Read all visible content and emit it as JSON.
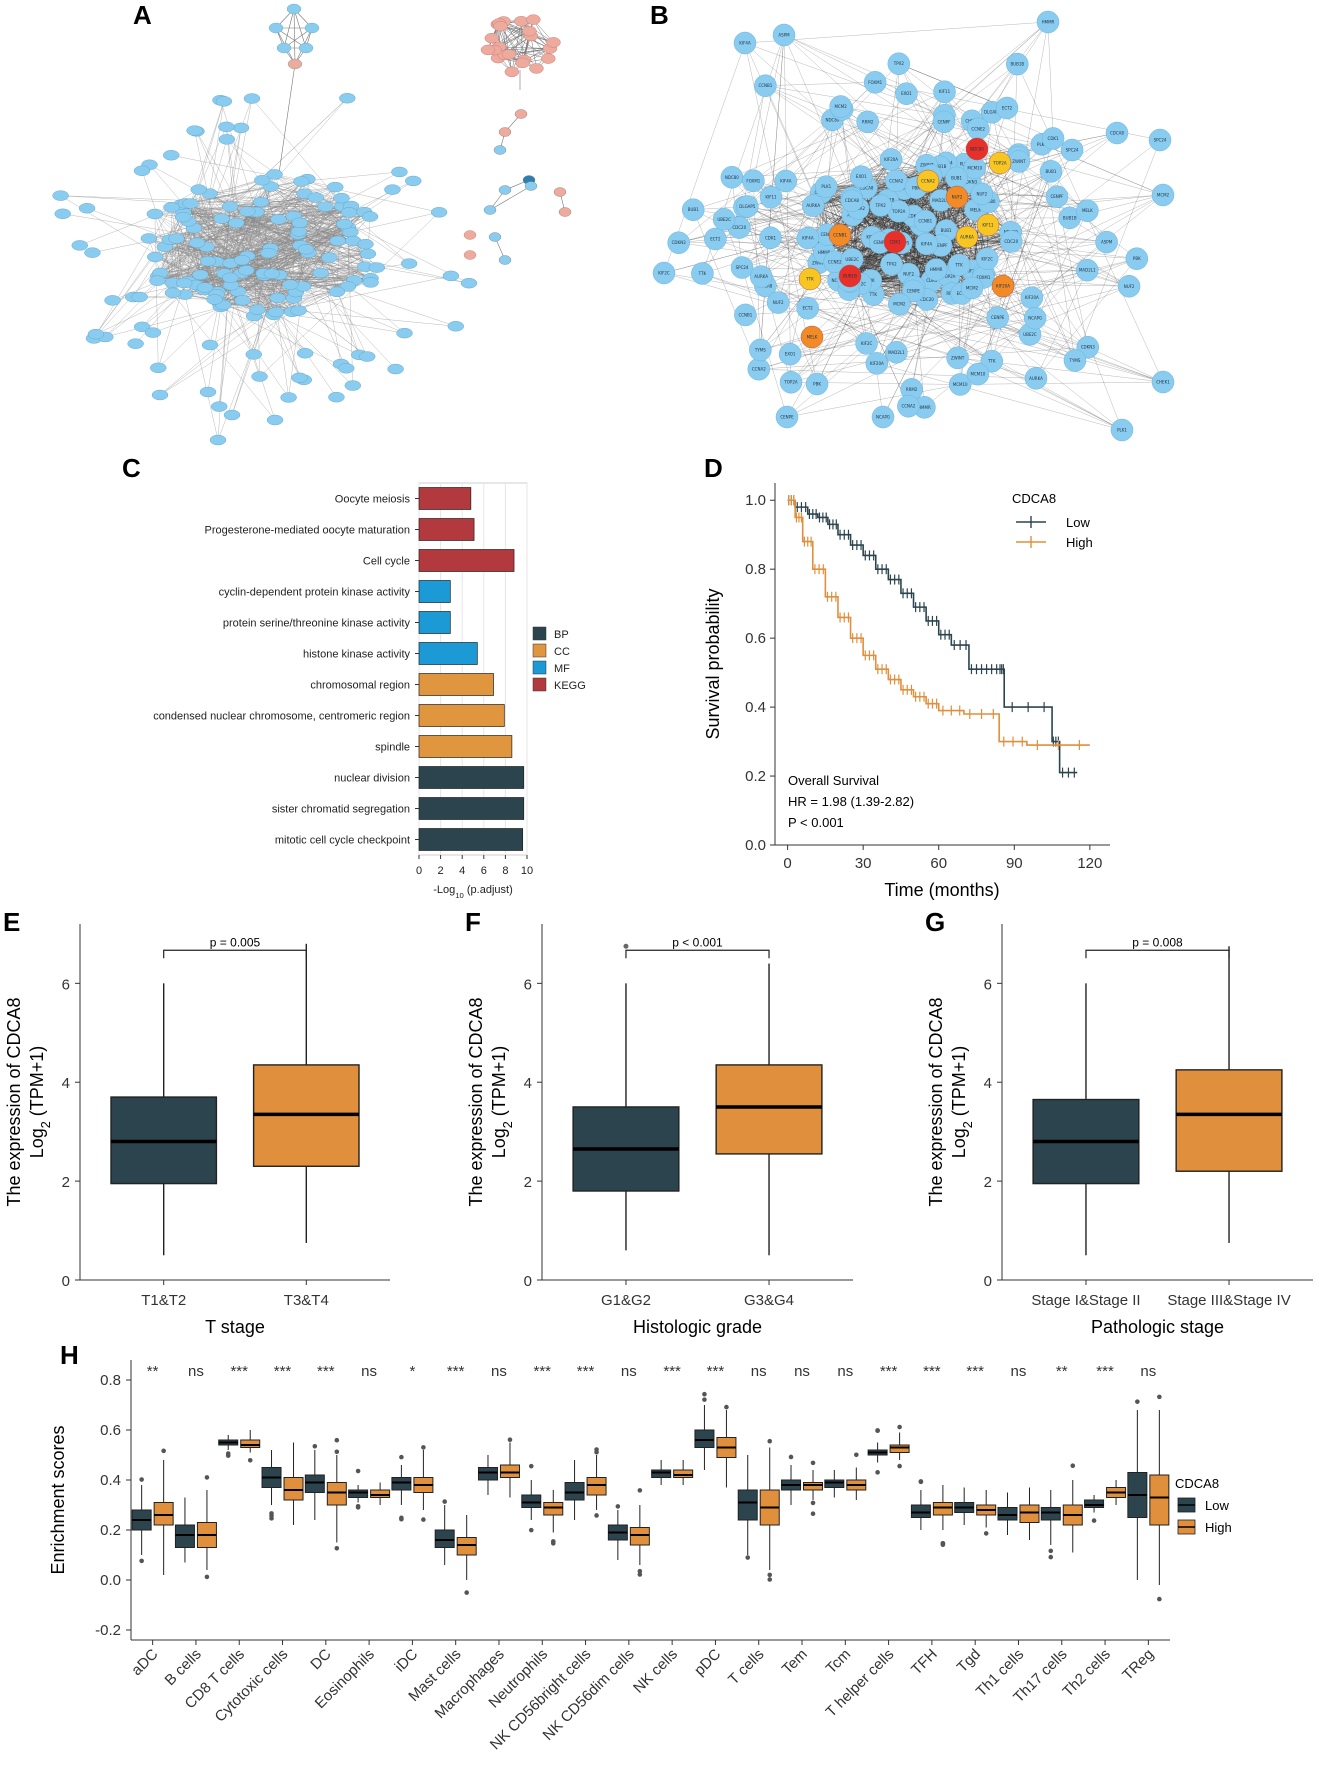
{
  "panels": {
    "A": "A",
    "B": "B",
    "C": "C",
    "D": "D",
    "E": "E",
    "F": "F",
    "G": "G",
    "H": "H"
  },
  "colors": {
    "low": "#2c444e",
    "high": "#e08f3c",
    "bp": "#2c444e",
    "cc": "#e0953f",
    "mf": "#1b9ad6",
    "kegg": "#b23a3f",
    "node_blue": "#89ccf0",
    "node_pink": "#eeaa9c",
    "hub_red": "#e8302a",
    "hub_orange": "#f28a26",
    "hub_yellow": "#f7c623"
  },
  "chart_data": [
    {
      "id": "C",
      "type": "bar",
      "orientation": "horizontal",
      "categories": [
        "Oocyte meiosis",
        "Progesterone-mediated oocyte maturation",
        "Cell cycle",
        "cyclin-dependent protein kinase activity",
        "protein serine/threonine kinase activity",
        "histone kinase activity",
        "chromosomal region",
        "condensed nuclear chromosome, centromeric region",
        "spindle",
        "nuclear division",
        "sister chromatid segregation",
        "mitotic cell cycle checkpoint"
      ],
      "values": [
        4.8,
        5.1,
        8.8,
        2.9,
        2.9,
        5.4,
        6.9,
        7.9,
        8.6,
        9.7,
        9.7,
        9.6
      ],
      "groups": [
        "KEGG",
        "KEGG",
        "KEGG",
        "MF",
        "MF",
        "MF",
        "CC",
        "CC",
        "CC",
        "BP",
        "BP",
        "BP"
      ],
      "xlabel_main": "-Log",
      "xlabel_sub": "10",
      "xlabel_rest": " (p.adjust)",
      "xticks": [
        0,
        2,
        4,
        6,
        8,
        10
      ],
      "xlim": [
        0,
        10
      ],
      "legend": [
        "BP",
        "CC",
        "MF",
        "KEGG"
      ]
    },
    {
      "id": "D",
      "type": "line",
      "subtype": "kaplan-meier",
      "legend_title": "CDCA8",
      "xlabel": "Time (months)",
      "ylabel": "Survival probability",
      "xticks": [
        0,
        30,
        60,
        90,
        120
      ],
      "yticks": [
        "0.0",
        "0.2",
        "0.4",
        "0.6",
        "0.8",
        "1.0"
      ],
      "xlim": [
        -5,
        128
      ],
      "ylim": [
        0,
        1.05
      ],
      "annotation": [
        "Overall Survival",
        "HR = 1.98 (1.39-2.82)",
        "P < 0.001"
      ],
      "series": [
        {
          "name": "Low",
          "x": [
            0,
            3,
            8,
            12,
            16,
            20,
            25,
            30,
            35,
            40,
            45,
            50,
            55,
            60,
            65,
            72,
            78,
            84,
            86,
            105,
            108,
            115
          ],
          "y": [
            1.0,
            0.98,
            0.96,
            0.95,
            0.93,
            0.9,
            0.87,
            0.84,
            0.8,
            0.77,
            0.73,
            0.69,
            0.65,
            0.61,
            0.58,
            0.51,
            0.51,
            0.51,
            0.4,
            0.3,
            0.21,
            0.21
          ]
        },
        {
          "name": "High",
          "x": [
            0,
            3,
            6,
            10,
            15,
            20,
            25,
            30,
            35,
            40,
            45,
            50,
            55,
            60,
            70,
            84,
            95,
            120
          ],
          "y": [
            1.0,
            0.95,
            0.88,
            0.8,
            0.72,
            0.66,
            0.6,
            0.55,
            0.51,
            0.48,
            0.45,
            0.43,
            0.41,
            0.39,
            0.38,
            0.3,
            0.29,
            0.29
          ]
        }
      ]
    },
    {
      "id": "E",
      "type": "box",
      "categories": [
        "T1&T2",
        "T3&T4"
      ],
      "xlabel": "T stage",
      "ylabel": "The expression of CDCA8",
      "ylabel2_main": "Log",
      "ylabel2_sub": "2",
      "ylabel2_rest": " (TPM+1)",
      "yticks": [
        0,
        2,
        4,
        6
      ],
      "ylim": [
        0,
        7.2
      ],
      "pvalue": "p = 0.005",
      "boxes": [
        {
          "min": 0.5,
          "q1": 1.95,
          "median": 2.8,
          "q3": 3.7,
          "max": 6.0
        },
        {
          "min": 0.75,
          "q1": 2.3,
          "median": 3.35,
          "q3": 4.35,
          "max": 6.8
        }
      ]
    },
    {
      "id": "F",
      "type": "box",
      "categories": [
        "G1&G2",
        "G3&G4"
      ],
      "xlabel": "Histologic grade",
      "ylabel": "The expression of CDCA8",
      "ylabel2_main": "Log",
      "ylabel2_sub": "2",
      "ylabel2_rest": " (TPM+1)",
      "yticks": [
        0,
        2,
        4,
        6
      ],
      "ylim": [
        0,
        7.2
      ],
      "pvalue": "p < 0.001",
      "boxes": [
        {
          "min": 0.6,
          "q1": 1.8,
          "median": 2.65,
          "q3": 3.5,
          "max": 6.0,
          "outliers": [
            6.75
          ]
        },
        {
          "min": 0.5,
          "q1": 2.55,
          "median": 3.5,
          "q3": 4.35,
          "max": 6.4
        }
      ]
    },
    {
      "id": "G",
      "type": "box",
      "categories": [
        "Stage I&Stage II",
        "Stage III&Stage IV"
      ],
      "xlabel": "Pathologic stage",
      "ylabel": "The expression of CDCA8",
      "ylabel2_main": "Log",
      "ylabel2_sub": "2",
      "ylabel2_rest": " (TPM+1)",
      "yticks": [
        0,
        2,
        4,
        6
      ],
      "ylim": [
        0,
        7.2
      ],
      "pvalue": "p = 0.008",
      "boxes": [
        {
          "min": 0.5,
          "q1": 1.95,
          "median": 2.8,
          "q3": 3.65,
          "max": 6.0
        },
        {
          "min": 0.75,
          "q1": 2.2,
          "median": 3.35,
          "q3": 4.25,
          "max": 6.75
        }
      ]
    },
    {
      "id": "H",
      "type": "box",
      "ylabel": "Enrichment scores",
      "legend_title": "CDCA8",
      "legend": [
        "Low",
        "High"
      ],
      "yticks": [
        "-0.2",
        "0.0",
        "0.2",
        "0.4",
        "0.6",
        "0.8"
      ],
      "ylim": [
        -0.24,
        0.88
      ],
      "categories": [
        "aDC",
        "B cells",
        "CD8 T cells",
        "Cytotoxic cells",
        "DC",
        "Eosinophils",
        "iDC",
        "Mast cells",
        "Macrophages",
        "Neutrophils",
        "NK CD56bright cells",
        "NK CD56dim cells",
        "NK cells",
        "pDC",
        "T cells",
        "Tem",
        "Tcm",
        "T helper cells",
        "TFH",
        "Tgd",
        "Th1 cells",
        "Th17 cells",
        "Th2 cells",
        "TReg"
      ],
      "significance": [
        "**",
        "ns",
        "***",
        "***",
        "***",
        "ns",
        "*",
        "***",
        "ns",
        "***",
        "***",
        "ns",
        "***",
        "***",
        "ns",
        "ns",
        "ns",
        "***",
        "***",
        "***",
        "ns",
        "**",
        "***",
        "ns"
      ],
      "series": [
        {
          "name": "Low",
          "boxes": [
            [
              0.1,
              0.2,
              0.24,
              0.28,
              0.38
            ],
            [
              0.07,
              0.13,
              0.18,
              0.22,
              0.33
            ],
            [
              0.52,
              0.54,
              0.55,
              0.56,
              0.58
            ],
            [
              0.3,
              0.37,
              0.41,
              0.45,
              0.52
            ],
            [
              0.24,
              0.35,
              0.39,
              0.42,
              0.52
            ],
            [
              0.31,
              0.33,
              0.35,
              0.36,
              0.38
            ],
            [
              0.3,
              0.36,
              0.39,
              0.41,
              0.46
            ],
            [
              0.06,
              0.13,
              0.16,
              0.2,
              0.3
            ],
            [
              0.34,
              0.4,
              0.43,
              0.45,
              0.5
            ],
            [
              0.24,
              0.29,
              0.31,
              0.34,
              0.4
            ],
            [
              0.24,
              0.32,
              0.35,
              0.39,
              0.48
            ],
            [
              0.08,
              0.16,
              0.19,
              0.22,
              0.28
            ],
            [
              0.38,
              0.41,
              0.43,
              0.44,
              0.48
            ],
            [
              0.44,
              0.53,
              0.56,
              0.6,
              0.7
            ],
            [
              0.1,
              0.24,
              0.31,
              0.36,
              0.5
            ],
            [
              0.3,
              0.36,
              0.38,
              0.4,
              0.46
            ],
            [
              0.33,
              0.37,
              0.39,
              0.4,
              0.44
            ],
            [
              0.47,
              0.5,
              0.51,
              0.52,
              0.55
            ],
            [
              0.2,
              0.25,
              0.27,
              0.3,
              0.36
            ],
            [
              0.22,
              0.27,
              0.29,
              0.31,
              0.37
            ],
            [
              0.18,
              0.24,
              0.26,
              0.29,
              0.35
            ],
            [
              0.14,
              0.24,
              0.27,
              0.29,
              0.36
            ],
            [
              0.27,
              0.29,
              0.3,
              0.32,
              0.34
            ],
            [
              0.0,
              0.25,
              0.34,
              0.43,
              0.68
            ]
          ]
        },
        {
          "name": "High",
          "boxes": [
            [
              0.02,
              0.22,
              0.26,
              0.31,
              0.48
            ],
            [
              0.04,
              0.13,
              0.18,
              0.23,
              0.36
            ],
            [
              0.51,
              0.53,
              0.54,
              0.56,
              0.6
            ],
            [
              0.22,
              0.32,
              0.36,
              0.41,
              0.55
            ],
            [
              0.15,
              0.3,
              0.35,
              0.39,
              0.5
            ],
            [
              0.3,
              0.33,
              0.34,
              0.36,
              0.39
            ],
            [
              0.28,
              0.35,
              0.38,
              0.41,
              0.52
            ],
            [
              0.0,
              0.1,
              0.14,
              0.17,
              0.26
            ],
            [
              0.33,
              0.41,
              0.43,
              0.46,
              0.55
            ],
            [
              0.19,
              0.26,
              0.29,
              0.31,
              0.36
            ],
            [
              0.28,
              0.34,
              0.38,
              0.41,
              0.5
            ],
            [
              0.06,
              0.14,
              0.18,
              0.21,
              0.3
            ],
            [
              0.38,
              0.41,
              0.42,
              0.44,
              0.48
            ],
            [
              0.37,
              0.49,
              0.53,
              0.57,
              0.68
            ],
            [
              0.04,
              0.22,
              0.29,
              0.36,
              0.53
            ],
            [
              0.32,
              0.36,
              0.38,
              0.39,
              0.44
            ],
            [
              0.32,
              0.36,
              0.38,
              0.4,
              0.45
            ],
            [
              0.48,
              0.51,
              0.53,
              0.54,
              0.59
            ],
            [
              0.2,
              0.26,
              0.29,
              0.31,
              0.38
            ],
            [
              0.21,
              0.26,
              0.28,
              0.3,
              0.36
            ],
            [
              0.16,
              0.23,
              0.27,
              0.3,
              0.37
            ],
            [
              0.11,
              0.22,
              0.26,
              0.3,
              0.4
            ],
            [
              0.3,
              0.33,
              0.35,
              0.37,
              0.4
            ],
            [
              -0.02,
              0.22,
              0.33,
              0.42,
              0.68
            ]
          ]
        }
      ]
    }
  ],
  "network_b_labels": [
    "NDC80",
    "NUF2",
    "CDK1",
    "CCNB1",
    "BUB1B",
    "KIF11",
    "AURKA",
    "TOP2A",
    "CCNA2",
    "KIF20A",
    "TTK",
    "MELK",
    "CDC20",
    "BUB1",
    "PBK",
    "DLGAP5",
    "CENPF",
    "ZWINT",
    "RRM2",
    "TPX2",
    "KIF2C",
    "CENPE",
    "NCAPG",
    "CDCA8",
    "MCM2",
    "CHEK1",
    "PLK1",
    "KIF4A",
    "ASPM",
    "HMMR",
    "ECT2",
    "SPC24",
    "MAD2L1",
    "FOXM1",
    "CDKN3",
    "TYMS",
    "CCNE2",
    "MCM10",
    "UBE2C",
    "EXO1"
  ]
}
